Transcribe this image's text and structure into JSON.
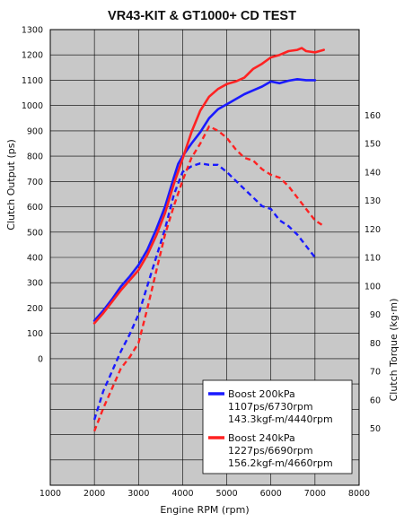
{
  "chart_data": {
    "type": "line",
    "title": "VR43-KIT & GT1000+  CD TEST",
    "xlabel": "Engine RPM (rpm)",
    "ylabel_left": "Clutch Output (ps)",
    "ylabel_right": "Clutch Torque (kg·m)",
    "xlim": [
      1000,
      8000
    ],
    "xticks": [
      "1000",
      "2000",
      "3000",
      "4000",
      "5000",
      "6000",
      "7000",
      "8000"
    ],
    "ylim_left": [
      -500,
      1300
    ],
    "yticks_left": [
      "0",
      "100",
      "200",
      "300",
      "400",
      "500",
      "600",
      "700",
      "800",
      "900",
      "1000",
      "1100",
      "1200",
      "1300"
    ],
    "ylim_right": [
      30,
      190
    ],
    "yticks_right": [
      "50",
      "60",
      "70",
      "80",
      "90",
      "100",
      "110",
      "120",
      "130",
      "140",
      "150",
      "160"
    ],
    "grid": true,
    "legend_position": "bottom-right",
    "colors": {
      "boost200": "#1a1aff",
      "boost240": "#ff2222",
      "plot_bg": "#c8c8c8"
    },
    "legend": [
      {
        "name": "Boost 200kPa",
        "lines": [
          "1107ps/6730rpm",
          "143.3kgf-m/4440rpm"
        ],
        "color": "#1a1aff"
      },
      {
        "name": "Boost 240kPa",
        "lines": [
          "1227ps/6690rpm",
          "156.2kgf-m/4660rpm"
        ],
        "color": "#ff2222"
      }
    ],
    "series": [
      {
        "name": "Boost 200kPa",
        "kind": "output",
        "axis": "left",
        "dash": false,
        "color": "#1a1aff",
        "x": [
          2000,
          2200,
          2400,
          2600,
          2800,
          3000,
          3200,
          3400,
          3600,
          3800,
          3900,
          4000,
          4200,
          4400,
          4600,
          4800,
          5000,
          5200,
          5400,
          5600,
          5800,
          6000,
          6200,
          6400,
          6600,
          6800,
          7000
        ],
        "y": [
          150,
          190,
          235,
          285,
          325,
          370,
          430,
          510,
          600,
          715,
          770,
          800,
          850,
          895,
          950,
          985,
          1005,
          1025,
          1045,
          1060,
          1075,
          1095,
          1088,
          1098,
          1104,
          1100,
          1100
        ]
      },
      {
        "name": "Boost 240kPa",
        "kind": "output",
        "axis": "left",
        "dash": false,
        "color": "#ff2222",
        "x": [
          2000,
          2200,
          2400,
          2600,
          2800,
          3000,
          3200,
          3400,
          3600,
          3800,
          4000,
          4200,
          4400,
          4600,
          4800,
          5000,
          5200,
          5400,
          5600,
          5800,
          6000,
          6200,
          6400,
          6600,
          6700,
          6800,
          7000,
          7200
        ],
        "y": [
          140,
          180,
          225,
          270,
          310,
          350,
          410,
          485,
          575,
          690,
          790,
          895,
          980,
          1035,
          1065,
          1085,
          1095,
          1110,
          1145,
          1165,
          1190,
          1200,
          1215,
          1220,
          1227,
          1215,
          1210,
          1220
        ]
      },
      {
        "name": "Boost 200kPa",
        "kind": "torque",
        "axis": "right",
        "dash": true,
        "color": "#1a1aff",
        "x": [
          2000,
          2200,
          2400,
          2600,
          2800,
          3000,
          3200,
          3400,
          3600,
          3800,
          4000,
          4200,
          4400,
          4600,
          4800,
          5000,
          5200,
          5400,
          5600,
          5800,
          6000,
          6200,
          6400,
          6600,
          6800,
          7000
        ],
        "y": [
          53,
          63,
          70,
          77,
          83,
          90,
          100,
          110,
          120,
          132,
          140,
          142,
          143,
          142.5,
          142.5,
          140,
          137,
          134,
          131,
          128,
          127,
          123,
          121,
          118,
          114,
          110
        ]
      },
      {
        "name": "Boost 240kPa",
        "kind": "torque",
        "axis": "right",
        "dash": true,
        "color": "#ff2222",
        "x": [
          2000,
          2200,
          2400,
          2600,
          2800,
          3000,
          3200,
          3400,
          3600,
          3800,
          4000,
          4200,
          4400,
          4600,
          4800,
          5000,
          5200,
          5400,
          5600,
          5800,
          6000,
          6200,
          6400,
          6600,
          6800,
          7000,
          7200
        ],
        "y": [
          49,
          57,
          64,
          71,
          75,
          80,
          92,
          105,
          118,
          128,
          137,
          145,
          150,
          156,
          154.5,
          152,
          148,
          145,
          144,
          141,
          139,
          138,
          135,
          131,
          127,
          123,
          121
        ]
      }
    ]
  }
}
